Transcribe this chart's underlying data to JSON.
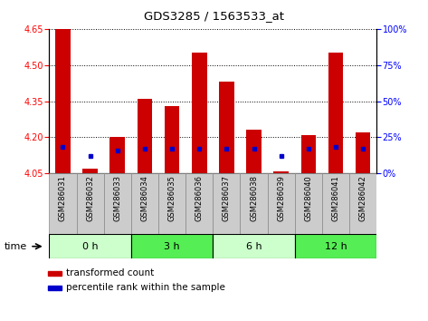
{
  "title": "GDS3285 / 1563533_at",
  "samples": [
    "GSM286031",
    "GSM286032",
    "GSM286033",
    "GSM286034",
    "GSM286035",
    "GSM286036",
    "GSM286037",
    "GSM286038",
    "GSM286039",
    "GSM286040",
    "GSM286041",
    "GSM286042"
  ],
  "transformed_count": [
    4.72,
    4.07,
    4.2,
    4.36,
    4.33,
    4.55,
    4.43,
    4.23,
    4.06,
    4.21,
    4.55,
    4.22
  ],
  "percentile_rank": [
    18,
    12,
    16,
    17,
    17,
    17,
    17,
    17,
    12,
    17,
    18,
    17
  ],
  "bar_bottom": 4.05,
  "ylim": [
    4.05,
    4.65
  ],
  "y2lim": [
    0,
    100
  ],
  "yticks": [
    4.05,
    4.2,
    4.35,
    4.5,
    4.65
  ],
  "y2ticks": [
    0,
    25,
    50,
    75,
    100
  ],
  "bar_color": "#cc0000",
  "dot_color": "#0000cc",
  "bar_width": 0.55,
  "groups": [
    {
      "label": "0 h",
      "start": 0,
      "end": 3,
      "color": "#ccffcc"
    },
    {
      "label": "3 h",
      "start": 3,
      "end": 6,
      "color": "#55ee55"
    },
    {
      "label": "6 h",
      "start": 6,
      "end": 9,
      "color": "#ccffcc"
    },
    {
      "label": "12 h",
      "start": 9,
      "end": 12,
      "color": "#55ee55"
    }
  ],
  "time_label": "time",
  "legend_bar_label": "transformed count",
  "legend_dot_label": "percentile rank within the sample",
  "grid_color": "#000000",
  "bg_color": "#ffffff",
  "tick_bg_color": "#cccccc"
}
